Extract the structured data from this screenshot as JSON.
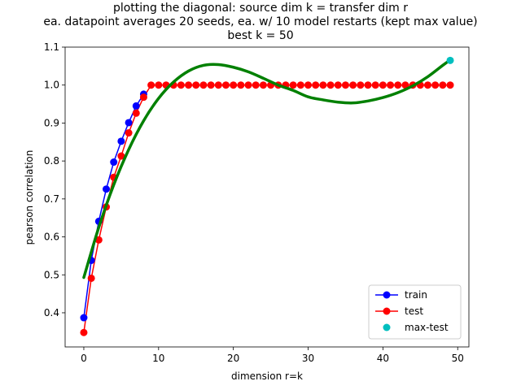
{
  "chart_data": {
    "type": "line",
    "title_lines": [
      "plotting the diagonal: source dim k = transfer dim r",
      "ea. datapoint averages 20 seeds, ea. w/ 10 model restarts (kept max value)",
      "best k = 50"
    ],
    "xlabel": "dimension r=k",
    "ylabel": "pearson correlation",
    "xlim": [
      -2.5,
      51.5
    ],
    "ylim": [
      0.31,
      1.1
    ],
    "xticks": [
      0,
      10,
      20,
      30,
      40,
      50
    ],
    "yticks": [
      0.4,
      0.5,
      0.6,
      0.7,
      0.8,
      0.9,
      1.0,
      1.1
    ],
    "xtick_labels": [
      "0",
      "10",
      "20",
      "30",
      "40",
      "50"
    ],
    "ytick_labels": [
      "0.4",
      "0.5",
      "0.6",
      "0.7",
      "0.8",
      "0.9",
      "1.0",
      "1.1"
    ],
    "grid": false,
    "legend_position": "lower-right",
    "series": [
      {
        "name": "train",
        "color": "#0000ff",
        "style": "line-marker",
        "x": [
          0,
          1,
          2,
          3,
          4,
          5,
          6,
          7,
          8
        ],
        "y": [
          0.387,
          0.538,
          0.641,
          0.726,
          0.797,
          0.852,
          0.901,
          0.945,
          0.976
        ]
      },
      {
        "name": "test",
        "color": "#ff0000",
        "style": "line-marker",
        "x": [
          0,
          1,
          2,
          3,
          4,
          5,
          6,
          7,
          8,
          9,
          10,
          11,
          12,
          13,
          14,
          15,
          16,
          17,
          18,
          19,
          20,
          21,
          22,
          23,
          24,
          25,
          26,
          27,
          28,
          29,
          30,
          31,
          32,
          33,
          34,
          35,
          36,
          37,
          38,
          39,
          40,
          41,
          42,
          43,
          44,
          45,
          46,
          47,
          48,
          49
        ],
        "y": [
          0.348,
          0.491,
          0.592,
          0.679,
          0.757,
          0.813,
          0.874,
          0.926,
          0.968,
          1.0,
          1.0,
          1.0,
          1.0,
          1.0,
          1.0,
          1.0,
          1.0,
          1.0,
          1.0,
          1.0,
          1.0,
          1.0,
          1.0,
          1.0,
          1.0,
          1.0,
          1.0,
          1.0,
          1.0,
          1.0,
          1.0,
          1.0,
          1.0,
          1.0,
          1.0,
          1.0,
          1.0,
          1.0,
          1.0,
          1.0,
          1.0,
          1.0,
          1.0,
          1.0,
          1.0,
          1.0,
          1.0,
          1.0,
          1.0,
          1.0
        ]
      },
      {
        "name": "max-test",
        "color": "#00bfbf",
        "style": "marker",
        "x": [
          49
        ],
        "y": [
          1.065
        ]
      }
    ],
    "fit_curve": {
      "color": "#008000",
      "x": [
        0,
        2,
        4,
        6,
        8,
        10,
        12,
        14,
        16,
        18,
        20,
        22,
        24,
        26,
        28,
        30,
        32,
        34,
        36,
        38,
        40,
        42,
        44,
        46,
        48,
        49
      ],
      "y": [
        0.493,
        0.625,
        0.737,
        0.83,
        0.906,
        0.965,
        1.008,
        1.037,
        1.052,
        1.054,
        1.047,
        1.035,
        1.018,
        1.0,
        0.986,
        0.969,
        0.961,
        0.955,
        0.953,
        0.958,
        0.967,
        0.98,
        0.998,
        1.022,
        1.052,
        1.066
      ]
    }
  }
}
